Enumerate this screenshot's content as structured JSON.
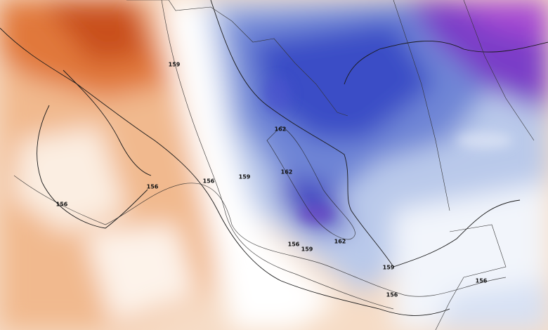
{
  "contour_labels": [
    "159",
    "156",
    "156",
    "156",
    "159",
    "162",
    "162",
    "162",
    "156",
    "159",
    "159",
    "156",
    "156"
  ]
}
